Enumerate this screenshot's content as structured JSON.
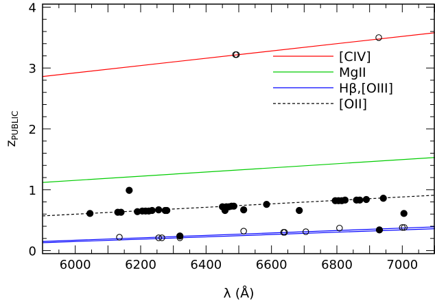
{
  "chart_data": {
    "type": "scatter",
    "xlabel": "λ (Å)",
    "ylabel": "z",
    "ylabel_sub": "PUBLIC",
    "xlim": [
      5900,
      7100
    ],
    "ylim": [
      -0.05,
      4.05
    ],
    "x_ticks": [
      6000,
      6200,
      6400,
      6600,
      6800,
      7000
    ],
    "y_ticks": [
      0,
      1,
      2,
      3,
      4
    ],
    "x_minor_step": 50,
    "y_minor_step": 0.2,
    "legend": {
      "position": "top-right",
      "entries": [
        {
          "label": "[CIV]",
          "color": "#ff0000",
          "style": "solid"
        },
        {
          "label": "MgII",
          "color": "#00cc00",
          "style": "solid"
        },
        {
          "label": "Hβ,[OIII]",
          "color": "#0000ff",
          "style": "solid"
        },
        {
          "label": "[OII]",
          "color": "#000000",
          "style": "dashed"
        }
      ]
    },
    "lines": [
      {
        "name": "[CIV]",
        "color": "#ff0000",
        "style": "solid",
        "x": [
          5900,
          7100
        ],
        "y": [
          2.86,
          3.58
        ]
      },
      {
        "name": "MgII",
        "color": "#00cc00",
        "style": "solid",
        "x": [
          5900,
          7100
        ],
        "y": [
          1.12,
          1.53
        ]
      },
      {
        "name": "Hβ,[OIII]",
        "color": "#0000ff",
        "style": "solid",
        "x": [
          5900,
          7100
        ],
        "y": [
          0.15,
          0.39
        ]
      },
      {
        "name": "Hβ,[OIII]",
        "color": "#0000ff",
        "style": "solid",
        "x": [
          5900,
          7100
        ],
        "y": [
          0.13,
          0.36
        ]
      },
      {
        "name": "[OII]",
        "color": "#000000",
        "style": "dashed",
        "x": [
          5900,
          7100
        ],
        "y": [
          0.57,
          0.91
        ]
      }
    ],
    "series": [
      {
        "marker": "filled-circle",
        "points": [
          [
            6045,
            0.61
          ],
          [
            6130,
            0.63
          ],
          [
            6140,
            0.63
          ],
          [
            6165,
            0.99
          ],
          [
            6190,
            0.64
          ],
          [
            6205,
            0.65
          ],
          [
            6215,
            0.65
          ],
          [
            6225,
            0.65
          ],
          [
            6235,
            0.66
          ],
          [
            6255,
            0.67
          ],
          [
            6275,
            0.66
          ],
          [
            6280,
            0.66
          ],
          [
            6320,
            0.24
          ],
          [
            6450,
            0.72
          ],
          [
            6458,
            0.66
          ],
          [
            6462,
            0.72
          ],
          [
            6470,
            0.72
          ],
          [
            6478,
            0.73
          ],
          [
            6485,
            0.73
          ],
          [
            6515,
            0.67
          ],
          [
            6585,
            0.76
          ],
          [
            6685,
            0.66
          ],
          [
            6795,
            0.82
          ],
          [
            6805,
            0.82
          ],
          [
            6815,
            0.82
          ],
          [
            6825,
            0.83
          ],
          [
            6860,
            0.83
          ],
          [
            6870,
            0.83
          ],
          [
            6890,
            0.84
          ],
          [
            6930,
            0.34
          ],
          [
            6942,
            0.86
          ],
          [
            7005,
            0.61
          ]
        ]
      },
      {
        "marker": "open-circle",
        "points": [
          [
            6135,
            0.22
          ],
          [
            6255,
            0.21
          ],
          [
            6265,
            0.21
          ],
          [
            6320,
            0.21
          ],
          [
            6490,
            3.22
          ],
          [
            6493,
            3.22
          ],
          [
            6515,
            0.32
          ],
          [
            6637,
            0.3
          ],
          [
            6640,
            0.3
          ],
          [
            6705,
            0.31
          ],
          [
            6808,
            0.37
          ],
          [
            6928,
            3.5
          ],
          [
            7000,
            0.38
          ],
          [
            7006,
            0.38
          ]
        ]
      }
    ]
  }
}
